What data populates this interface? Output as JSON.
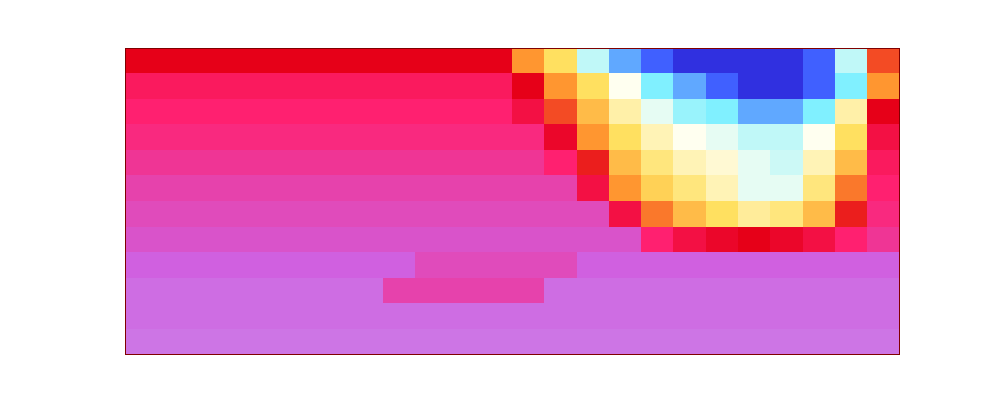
{
  "chart_data": {
    "type": "heatmap",
    "tick_labels": false,
    "grid": false,
    "xlim": [
      0,
      24
    ],
    "ylim": [
      0,
      12
    ],
    "cells": [
      [
        0.4,
        0.4,
        0.4,
        0.4,
        0.4,
        0.4,
        0.4,
        0.4,
        0.4,
        0.4,
        0.4,
        0.4,
        0.5,
        0.6,
        0.75,
        0.85,
        0.9,
        0.95,
        0.95,
        0.95,
        0.95,
        0.9,
        0.75,
        0.45
      ],
      [
        0.32,
        0.32,
        0.32,
        0.32,
        0.32,
        0.32,
        0.32,
        0.32,
        0.32,
        0.32,
        0.32,
        0.32,
        0.4,
        0.5,
        0.6,
        0.7,
        0.8,
        0.85,
        0.9,
        0.95,
        0.95,
        0.9,
        0.8,
        0.5
      ],
      [
        0.3,
        0.3,
        0.3,
        0.3,
        0.3,
        0.3,
        0.3,
        0.3,
        0.3,
        0.3,
        0.3,
        0.3,
        0.35,
        0.45,
        0.55,
        0.65,
        0.72,
        0.78,
        0.8,
        0.85,
        0.85,
        0.8,
        0.65,
        0.4
      ],
      [
        0.28,
        0.28,
        0.28,
        0.28,
        0.28,
        0.28,
        0.28,
        0.28,
        0.28,
        0.28,
        0.28,
        0.28,
        0.28,
        0.38,
        0.5,
        0.6,
        0.66,
        0.7,
        0.72,
        0.75,
        0.75,
        0.7,
        0.6,
        0.35
      ],
      [
        0.25,
        0.25,
        0.25,
        0.25,
        0.25,
        0.25,
        0.25,
        0.25,
        0.25,
        0.25,
        0.25,
        0.25,
        0.25,
        0.3,
        0.42,
        0.55,
        0.62,
        0.66,
        0.68,
        0.72,
        0.74,
        0.66,
        0.55,
        0.32
      ],
      [
        0.22,
        0.22,
        0.22,
        0.22,
        0.22,
        0.22,
        0.22,
        0.22,
        0.22,
        0.22,
        0.22,
        0.22,
        0.22,
        0.22,
        0.35,
        0.5,
        0.58,
        0.62,
        0.66,
        0.72,
        0.72,
        0.62,
        0.48,
        0.3
      ],
      [
        0.2,
        0.2,
        0.2,
        0.2,
        0.2,
        0.2,
        0.2,
        0.2,
        0.2,
        0.2,
        0.2,
        0.2,
        0.2,
        0.2,
        0.2,
        0.35,
        0.48,
        0.55,
        0.6,
        0.64,
        0.62,
        0.55,
        0.42,
        0.28
      ],
      [
        0.18,
        0.18,
        0.18,
        0.18,
        0.18,
        0.18,
        0.18,
        0.18,
        0.18,
        0.18,
        0.18,
        0.18,
        0.18,
        0.18,
        0.18,
        0.18,
        0.3,
        0.35,
        0.38,
        0.4,
        0.38,
        0.35,
        0.3,
        0.25
      ],
      [
        0.15,
        0.15,
        0.15,
        0.15,
        0.15,
        0.15,
        0.15,
        0.15,
        0.15,
        0.2,
        0.2,
        0.2,
        0.2,
        0.2,
        0.15,
        0.15,
        0.15,
        0.15,
        0.15,
        0.15,
        0.15,
        0.15,
        0.15,
        0.15
      ],
      [
        0.12,
        0.12,
        0.12,
        0.12,
        0.12,
        0.12,
        0.12,
        0.12,
        0.22,
        0.22,
        0.22,
        0.22,
        0.22,
        0.12,
        0.12,
        0.12,
        0.12,
        0.12,
        0.12,
        0.12,
        0.12,
        0.12,
        0.12,
        0.12
      ],
      [
        0.12,
        0.12,
        0.12,
        0.12,
        0.12,
        0.12,
        0.12,
        0.12,
        0.12,
        0.12,
        0.12,
        0.12,
        0.12,
        0.12,
        0.12,
        0.12,
        0.12,
        0.12,
        0.12,
        0.12,
        0.12,
        0.12,
        0.12,
        0.12
      ],
      [
        0.1,
        0.1,
        0.1,
        0.1,
        0.1,
        0.1,
        0.1,
        0.1,
        0.1,
        0.1,
        0.1,
        0.1,
        0.1,
        0.1,
        0.1,
        0.1,
        0.1,
        0.1,
        0.1,
        0.1,
        0.1,
        0.1,
        0.1,
        0.1
      ]
    ]
  }
}
